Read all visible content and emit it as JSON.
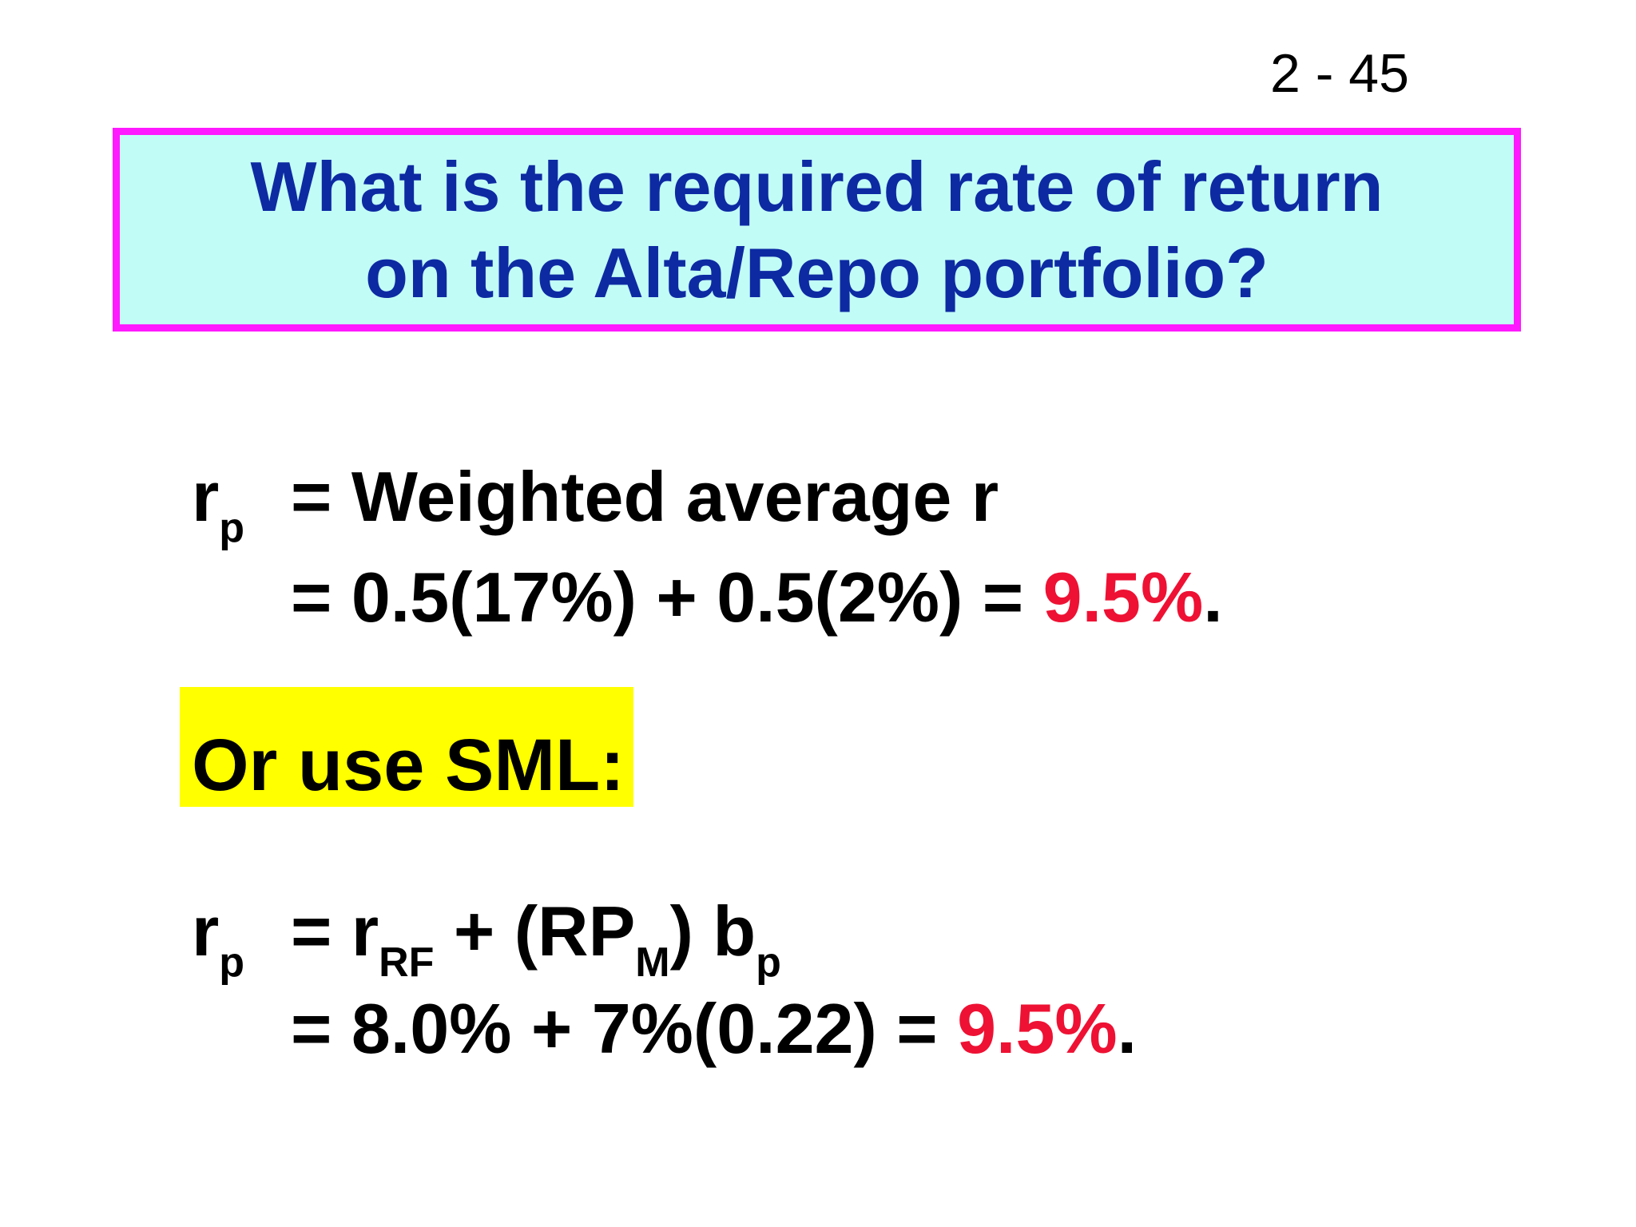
{
  "page_number": "2 - 45",
  "title": {
    "line1": "What is the required rate of return",
    "line2": "on the Alta/Repo portfolio?"
  },
  "weighted": {
    "lhs_r": "r",
    "lhs_sub": "p",
    "line1": "= Weighted average r",
    "line2_prefix": "= 0.5(17%) + 0.5(2%)  = ",
    "line2_result": "9.5%",
    "line2_suffix": "."
  },
  "sml_label": "Or use SML:",
  "sml": {
    "lhs_r": "r",
    "lhs_sub": "p",
    "line1_eq": "= r",
    "line1_rf_sub": "RF",
    "line1_plus": " + (RP",
    "line1_m_sub": "M",
    "line1_close": ") b",
    "line1_p_sub": "p",
    "line2_prefix": "= 8.0% + 7%(0.22) = ",
    "line2_result": "9.5%",
    "line2_suffix": "."
  },
  "colors": {
    "title_text": "#0d2aa3",
    "title_bg": "#c2fcf6",
    "title_border": "#ff19ff",
    "highlight": "#ffff00",
    "result": "#ee1133"
  }
}
